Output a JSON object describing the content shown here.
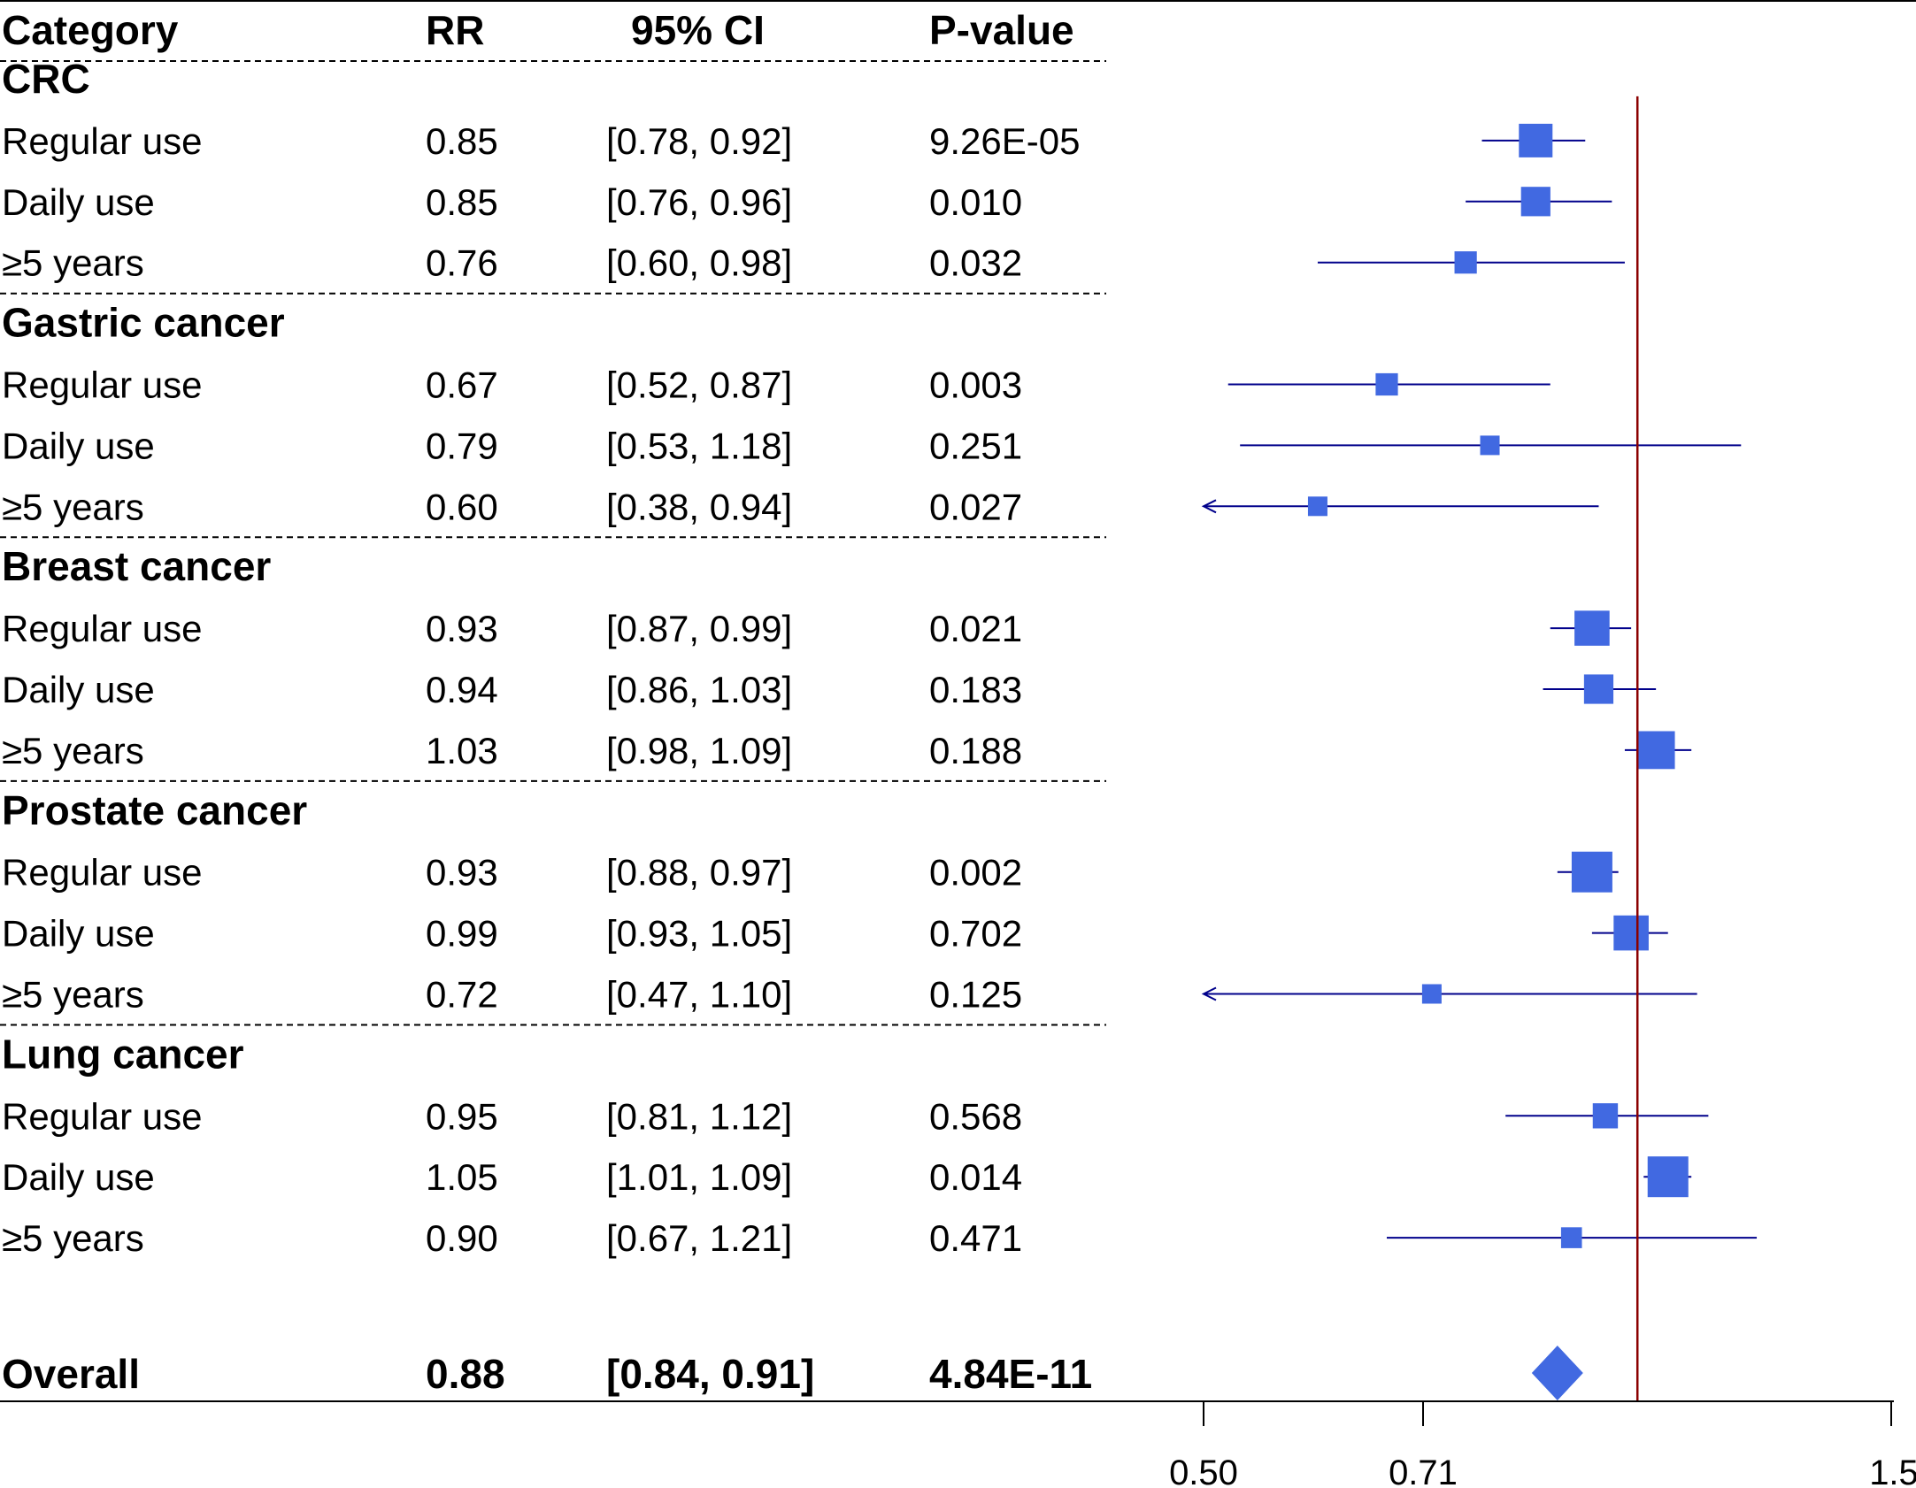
{
  "chart_data": {
    "type": "forest",
    "scale": "log",
    "headers": {
      "category": "Category",
      "rr": "RR",
      "ci": "95% CI",
      "pvalue": "P-value"
    },
    "groups": [
      {
        "name": "CRC",
        "rows": [
          {
            "label": "Regular use",
            "rr": 0.85,
            "lo": 0.78,
            "hi": 0.92,
            "rr_text": "0.85",
            "ci_text": "[0.78, 0.92]",
            "p_text": "9.26E-05",
            "weight": 0.75
          },
          {
            "label": "Daily use",
            "rr": 0.85,
            "lo": 0.76,
            "hi": 0.96,
            "rr_text": "0.85",
            "ci_text": "[0.76, 0.96]",
            "p_text": "0.010",
            "weight": 0.6
          },
          {
            "label": "≥5 years",
            "rr": 0.76,
            "lo": 0.6,
            "hi": 0.98,
            "rr_text": "0.76",
            "ci_text": "[0.60, 0.98]",
            "p_text": "0.032",
            "weight": 0.35
          }
        ]
      },
      {
        "name": "Gastric cancer",
        "rows": [
          {
            "label": "Regular use",
            "rr": 0.67,
            "lo": 0.52,
            "hi": 0.87,
            "rr_text": "0.67",
            "ci_text": "[0.52, 0.87]",
            "p_text": "0.003",
            "weight": 0.35
          },
          {
            "label": "Daily use",
            "rr": 0.79,
            "lo": 0.53,
            "hi": 1.18,
            "rr_text": "0.79",
            "ci_text": "[0.53, 1.18]",
            "p_text": "0.251",
            "weight": 0.25
          },
          {
            "label": "≥5 years",
            "rr": 0.6,
            "lo": 0.38,
            "hi": 0.94,
            "rr_text": "0.60",
            "ci_text": "[0.38, 0.94]",
            "p_text": "0.027",
            "weight": 0.25,
            "lo_arrow": true
          }
        ]
      },
      {
        "name": "Breast cancer",
        "rows": [
          {
            "label": "Regular use",
            "rr": 0.93,
            "lo": 0.87,
            "hi": 0.99,
            "rr_text": "0.93",
            "ci_text": "[0.87, 0.99]",
            "p_text": "0.021",
            "weight": 0.8
          },
          {
            "label": "Daily use",
            "rr": 0.94,
            "lo": 0.86,
            "hi": 1.03,
            "rr_text": "0.94",
            "ci_text": "[0.86, 1.03]",
            "p_text": "0.183",
            "weight": 0.6
          },
          {
            "label": "≥5 years",
            "rr": 1.03,
            "lo": 0.98,
            "hi": 1.09,
            "rr_text": "1.03",
            "ci_text": "[0.98, 1.09]",
            "p_text": "0.188",
            "weight": 0.9
          }
        ]
      },
      {
        "name": "Prostate cancer",
        "rows": [
          {
            "label": "Regular use",
            "rr": 0.93,
            "lo": 0.88,
            "hi": 0.97,
            "rr_text": "0.93",
            "ci_text": "[0.88, 0.97]",
            "p_text": "0.002",
            "weight": 1.0
          },
          {
            "label": "Daily use",
            "rr": 0.99,
            "lo": 0.93,
            "hi": 1.05,
            "rr_text": "0.99",
            "ci_text": "[0.93, 1.05]",
            "p_text": "0.702",
            "weight": 0.8
          },
          {
            "label": "≥5 years",
            "rr": 0.72,
            "lo": 0.47,
            "hi": 1.1,
            "rr_text": "0.72",
            "ci_text": "[0.47, 1.10]",
            "p_text": "0.125",
            "weight": 0.25,
            "lo_arrow": true
          }
        ]
      },
      {
        "name": "Lung cancer",
        "rows": [
          {
            "label": "Regular use",
            "rr": 0.95,
            "lo": 0.81,
            "hi": 1.12,
            "rr_text": "0.95",
            "ci_text": "[0.81, 1.12]",
            "p_text": "0.568",
            "weight": 0.45
          },
          {
            "label": "Daily use",
            "rr": 1.05,
            "lo": 1.01,
            "hi": 1.09,
            "rr_text": "1.05",
            "ci_text": "[1.01, 1.09]",
            "p_text": "0.014",
            "weight": 1.0
          },
          {
            "label": "≥5 years",
            "rr": 0.9,
            "lo": 0.67,
            "hi": 1.21,
            "rr_text": "0.90",
            "ci_text": "[0.67, 1.21]",
            "p_text": "0.471",
            "weight": 0.3
          }
        ]
      }
    ],
    "overall": {
      "label": "Overall",
      "rr": 0.88,
      "lo": 0.84,
      "hi": 0.91,
      "rr_text": "0.88",
      "ci_text": "[0.84, 0.91]",
      "p_text": "4.84E-11"
    },
    "reference_line": 1.0,
    "xlim": [
      0.5,
      1.5
    ],
    "xticks": [
      0.5,
      0.71,
      1.5
    ],
    "xtick_labels": [
      "0.50",
      "0.71",
      "1.5"
    ],
    "colors": {
      "marker": "#4169e1",
      "ci_line": "#00008b",
      "reference": "#8b0000",
      "text": "#000000"
    }
  }
}
